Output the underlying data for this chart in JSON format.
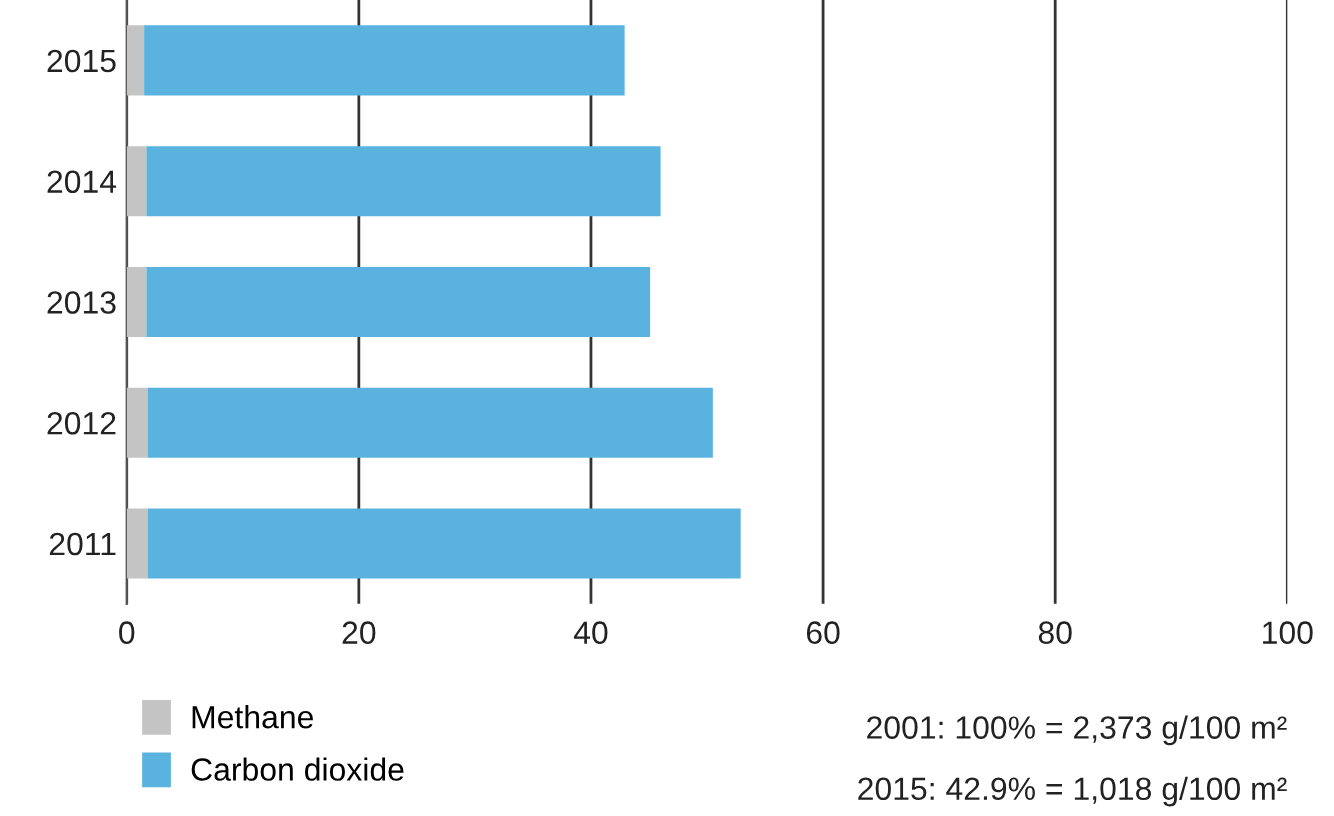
{
  "chart_data": {
    "type": "bar",
    "orientation": "horizontal",
    "stacked": true,
    "categories": [
      "2015",
      "2014",
      "2013",
      "2012",
      "2011"
    ],
    "series": [
      {
        "name": "Methane",
        "color": "#c4c4c4",
        "values": [
          1.5,
          1.7,
          1.7,
          1.8,
          1.8
        ]
      },
      {
        "name": "Carbon dioxide",
        "color": "#5ab3df",
        "values": [
          41.4,
          44.3,
          43.4,
          48.7,
          51.1
        ]
      }
    ],
    "xlim": [
      0,
      100
    ],
    "xticks": [
      0,
      20,
      40,
      60,
      80,
      100
    ],
    "grid": "x",
    "legend": "bottom left",
    "annotations": [
      "2001: 100% = 2,373 g/100 m²",
      "2015: 42.9% = 1,018 g/100 m²"
    ]
  }
}
